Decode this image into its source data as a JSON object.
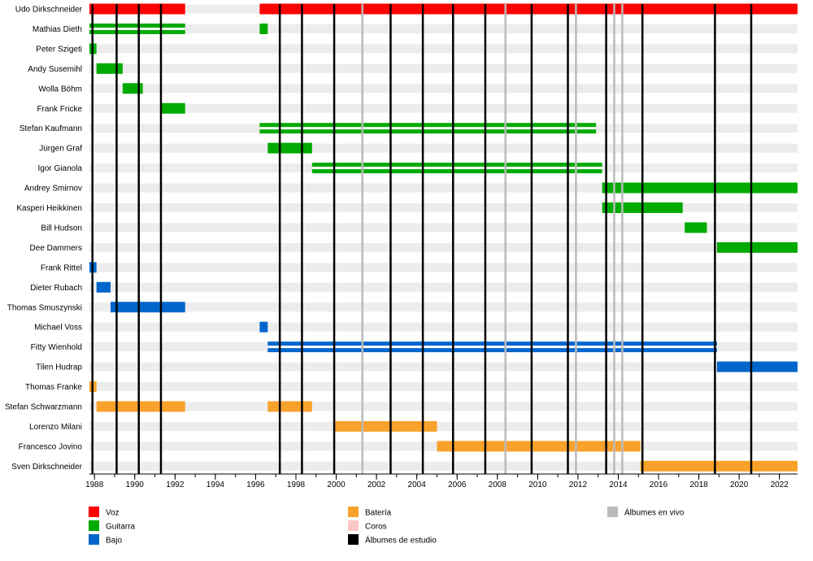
{
  "chart_data": {
    "type": "timeline",
    "title": "",
    "xlabel": "",
    "ylabel": "",
    "xlim": [
      1987.75,
      2022.9
    ],
    "x_ticks": [
      1988,
      1990,
      1992,
      1994,
      1996,
      1998,
      2000,
      2002,
      2004,
      2006,
      2008,
      2010,
      2012,
      2014,
      2016,
      2018,
      2020,
      2022
    ],
    "tick_labels": [
      "1988",
      "1990",
      "1992",
      "1994",
      "1996",
      "1998",
      "2000",
      "2002",
      "2004",
      "2006",
      "2008",
      "2010",
      "2012",
      "2014",
      "2016",
      "2018",
      "2020",
      "2022"
    ],
    "grid": "alternate row stripes",
    "legend_placement": "bottom",
    "colors": {
      "voz": "#ff0000",
      "guitarra": "#00aa00",
      "bajo": "#0066cc",
      "bateria": "#f8a22b",
      "coros": "#ffc8c8",
      "estudio": "#000000",
      "vivo": "#bbbbbb"
    },
    "legend": [
      {
        "key": "voz",
        "label": "Voz"
      },
      {
        "key": "guitarra",
        "label": "Guitarra"
      },
      {
        "key": "bajo",
        "label": "Bajo"
      },
      {
        "key": "bateria",
        "label": "Batería"
      },
      {
        "key": "coros",
        "label": "Coros"
      },
      {
        "key": "estudio",
        "label": "Álbumes de estudio"
      },
      {
        "key": "vivo",
        "label": "Álbumes en vivo"
      }
    ],
    "studio_albums": [
      1987.9,
      1989.1,
      1990.2,
      1991.3,
      1997.2,
      1998.3,
      1999.9,
      2002.7,
      2004.3,
      2005.8,
      2007.4,
      2009.7,
      2011.5,
      2013.4,
      2015.2,
      2018.8,
      2020.6
    ],
    "live_albums": [
      2001.3,
      2008.4,
      2011.9,
      2013.8,
      2014.2
    ],
    "members": [
      {
        "name": "Udo Dirkschneider",
        "spans": [
          {
            "start": 1987.75,
            "end": 1992.5,
            "role": "voz"
          },
          {
            "start": 1996.2,
            "end": 2022.9,
            "role": "voz"
          }
        ]
      },
      {
        "name": "Mathias Dieth",
        "spans": [
          {
            "start": 1987.75,
            "end": 1992.5,
            "role": "guitarra",
            "secondary": "coros"
          },
          {
            "start": 1996.2,
            "end": 1996.6,
            "role": "guitarra"
          }
        ]
      },
      {
        "name": "Peter Szigeti",
        "spans": [
          {
            "start": 1987.75,
            "end": 1988.1,
            "role": "guitarra"
          }
        ]
      },
      {
        "name": "Andy Susemihl",
        "spans": [
          {
            "start": 1988.1,
            "end": 1989.4,
            "role": "guitarra"
          }
        ]
      },
      {
        "name": "Wolla Böhm",
        "spans": [
          {
            "start": 1989.4,
            "end": 1990.4,
            "role": "guitarra"
          }
        ]
      },
      {
        "name": "Frank Fricke",
        "spans": [
          {
            "start": 1991.3,
            "end": 1992.5,
            "role": "guitarra"
          }
        ]
      },
      {
        "name": "Stefan Kaufmann",
        "spans": [
          {
            "start": 1996.2,
            "end": 2012.9,
            "role": "guitarra",
            "secondary": "coros"
          }
        ]
      },
      {
        "name": "Jürgen Graf",
        "spans": [
          {
            "start": 1996.6,
            "end": 1998.8,
            "role": "guitarra"
          }
        ]
      },
      {
        "name": "Igor Gianola",
        "spans": [
          {
            "start": 1998.8,
            "end": 2013.2,
            "role": "guitarra",
            "secondary": "coros"
          }
        ]
      },
      {
        "name": "Andrey Smirnov",
        "spans": [
          {
            "start": 2013.2,
            "end": 2022.9,
            "role": "guitarra"
          }
        ]
      },
      {
        "name": "Kasperi Heikkinen",
        "spans": [
          {
            "start": 2013.2,
            "end": 2017.2,
            "role": "guitarra"
          }
        ]
      },
      {
        "name": "Bill Hudson",
        "spans": [
          {
            "start": 2017.3,
            "end": 2018.4,
            "role": "guitarra"
          }
        ]
      },
      {
        "name": "Dee Dammers",
        "spans": [
          {
            "start": 2018.9,
            "end": 2022.9,
            "role": "guitarra"
          }
        ]
      },
      {
        "name": "Frank Rittel",
        "spans": [
          {
            "start": 1987.75,
            "end": 1988.1,
            "role": "bajo"
          }
        ]
      },
      {
        "name": "Dieter Rubach",
        "spans": [
          {
            "start": 1988.1,
            "end": 1988.8,
            "role": "bajo"
          }
        ]
      },
      {
        "name": "Thomas Smuszynski",
        "spans": [
          {
            "start": 1988.8,
            "end": 1992.5,
            "role": "bajo"
          }
        ]
      },
      {
        "name": "Michael Voss",
        "spans": [
          {
            "start": 1996.2,
            "end": 1996.6,
            "role": "bajo"
          }
        ]
      },
      {
        "name": "Fitty Wienhold",
        "spans": [
          {
            "start": 1996.6,
            "end": 2018.9,
            "role": "bajo",
            "secondary": "coros"
          }
        ]
      },
      {
        "name": "Tilen Hudrap",
        "spans": [
          {
            "start": 2018.9,
            "end": 2022.9,
            "role": "bajo"
          }
        ]
      },
      {
        "name": "Thomas Franke",
        "spans": [
          {
            "start": 1987.75,
            "end": 1988.1,
            "role": "bateria"
          }
        ]
      },
      {
        "name": "Stefan Schwarzmann",
        "spans": [
          {
            "start": 1988.1,
            "end": 1992.5,
            "role": "bateria"
          },
          {
            "start": 1996.6,
            "end": 1998.8,
            "role": "bateria"
          }
        ]
      },
      {
        "name": "Lorenzo Milani",
        "spans": [
          {
            "start": 1999.9,
            "end": 2005.0,
            "role": "bateria"
          }
        ]
      },
      {
        "name": "Francesco Jovino",
        "spans": [
          {
            "start": 2005.0,
            "end": 2015.1,
            "role": "bateria"
          }
        ]
      },
      {
        "name": "Sven Dirkschneider",
        "spans": [
          {
            "start": 2015.1,
            "end": 2022.9,
            "role": "bateria"
          }
        ]
      }
    ]
  }
}
